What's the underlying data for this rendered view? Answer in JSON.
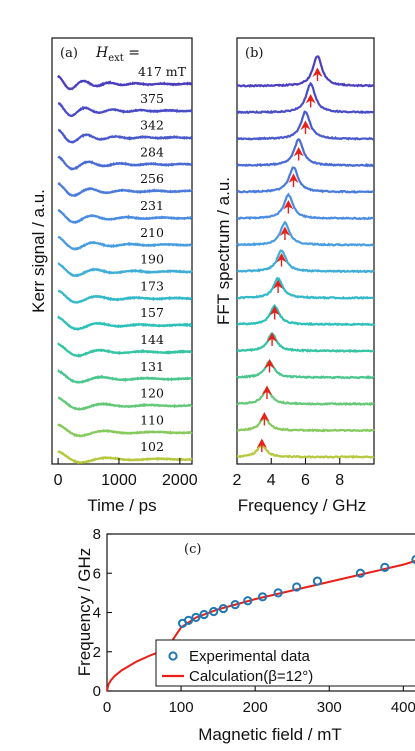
{
  "chart_data": [
    {
      "type": "line",
      "panel": "(a)",
      "label": "H",
      "label_sub": "ext",
      "label_suffix": " =",
      "xlabel": "Time / ps",
      "ylabel": "Kerr signal / a.u.",
      "xlim": [
        -100,
        2200
      ],
      "xticks": [
        0,
        1000,
        2000
      ],
      "unit": "mT",
      "series": [
        {
          "field": 417,
          "label": "417 mT",
          "color": "#4b3fbf",
          "freq_ghz": 6.7
        },
        {
          "field": 375,
          "label": "375",
          "color": "#4a4cc6",
          "freq_ghz": 6.3
        },
        {
          "field": 342,
          "label": "342",
          "color": "#4a5acc",
          "freq_ghz": 6.0
        },
        {
          "field": 284,
          "label": "284",
          "color": "#4a6bd4",
          "freq_ghz": 5.6
        },
        {
          "field": 256,
          "label": "256",
          "color": "#4b7bda",
          "freq_ghz": 5.3
        },
        {
          "field": 231,
          "label": "231",
          "color": "#4a8ce0",
          "freq_ghz": 5.0
        },
        {
          "field": 210,
          "label": "210",
          "color": "#489ddf",
          "freq_ghz": 4.8
        },
        {
          "field": 190,
          "label": "190",
          "color": "#3fadd6",
          "freq_ghz": 4.6
        },
        {
          "field": 173,
          "label": "173",
          "color": "#33b9c9",
          "freq_ghz": 4.4
        },
        {
          "field": 157,
          "label": "157",
          "color": "#2cc0b8",
          "freq_ghz": 4.2
        },
        {
          "field": 144,
          "label": "144",
          "color": "#35c4a4",
          "freq_ghz": 4.05
        },
        {
          "field": 131,
          "label": "131",
          "color": "#4ac68e",
          "freq_ghz": 3.9
        },
        {
          "field": 120,
          "label": "120",
          "color": "#65c878",
          "freq_ghz": 3.75
        },
        {
          "field": 110,
          "label": "110",
          "color": "#86c95c",
          "freq_ghz": 3.6
        },
        {
          "field": 102,
          "label": "102",
          "color": "#b6c840",
          "freq_ghz": 3.45
        }
      ]
    },
    {
      "type": "line",
      "panel": "(b)",
      "xlabel": "Frequency / GHz",
      "ylabel": "FFT spectrum / a.u.",
      "xlim": [
        2,
        10
      ],
      "xticks": [
        2,
        4,
        6,
        8
      ],
      "peak_marker": "red arrow",
      "peak_color": "#e8201a",
      "peaks_ghz": [
        6.7,
        6.3,
        6.0,
        5.6,
        5.3,
        5.0,
        4.8,
        4.6,
        4.4,
        4.2,
        4.05,
        3.9,
        3.75,
        3.6,
        3.45
      ]
    },
    {
      "type": "scatter",
      "panel": "(c)",
      "xlabel": "Magnetic field / mT",
      "ylabel": "Frequency / GHz",
      "xlim": [
        0,
        440
      ],
      "ylim": [
        0,
        8
      ],
      "xticks": [
        0,
        100,
        200,
        300,
        400
      ],
      "yticks": [
        0,
        2,
        4,
        6,
        8
      ],
      "legend_position": "bottom-right",
      "series": [
        {
          "name": "Experimental data",
          "kind": "scatter",
          "color": "#1f77b4",
          "points": [
            [
              102,
              3.45
            ],
            [
              110,
              3.6
            ],
            [
              120,
              3.75
            ],
            [
              131,
              3.9
            ],
            [
              144,
              4.05
            ],
            [
              157,
              4.2
            ],
            [
              173,
              4.4
            ],
            [
              190,
              4.6
            ],
            [
              210,
              4.8
            ],
            [
              231,
              5.0
            ],
            [
              256,
              5.3
            ],
            [
              284,
              5.6
            ],
            [
              342,
              6.0
            ],
            [
              375,
              6.3
            ],
            [
              417,
              6.7
            ]
          ]
        },
        {
          "name": "Calculation(β=12°)",
          "kind": "line",
          "color": "#e8201a",
          "points": [
            [
              0,
              0
            ],
            [
              2,
              0.34
            ],
            [
              5,
              0.53
            ],
            [
              10,
              0.75
            ],
            [
              20,
              1.06
            ],
            [
              40,
              1.5
            ],
            [
              60,
              1.84
            ],
            [
              80,
              2.12
            ],
            [
              100,
              3.24
            ],
            [
              120,
              3.74
            ],
            [
              150,
              4.16
            ],
            [
              200,
              4.68
            ],
            [
              250,
              5.12
            ],
            [
              300,
              5.56
            ],
            [
              350,
              6.0
            ],
            [
              400,
              6.44
            ],
            [
              440,
              6.9
            ]
          ]
        }
      ]
    }
  ]
}
